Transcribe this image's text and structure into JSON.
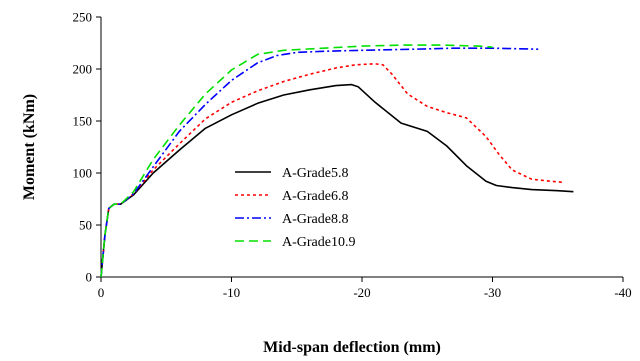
{
  "chart_data": {
    "type": "line",
    "title": "",
    "xlabel": "Mid-span deflection (mm)",
    "ylabel": "Moment (kNm)",
    "xlim": [
      0,
      -40
    ],
    "ylim": [
      0,
      250
    ],
    "xticks": [
      0,
      -10,
      -20,
      -30,
      -40
    ],
    "yticks": [
      0,
      50,
      100,
      150,
      200,
      250
    ],
    "grid": false,
    "legend_position": "center-left",
    "series": [
      {
        "name": "A-Grade5.8",
        "color": "#000000",
        "dash": "solid",
        "x": [
          0,
          -0.3,
          -0.6,
          -1.0,
          -1.5,
          -2.5,
          -4,
          -6,
          -8,
          -10,
          -12,
          -14,
          -16,
          -18,
          -19.2,
          -19.7,
          -21,
          -23,
          -25,
          -26.5,
          -28,
          -29.5,
          -30.3,
          -31.5,
          -33,
          -35,
          -36.2
        ],
        "y": [
          0,
          40,
          66,
          70,
          70,
          79,
          100,
          122,
          143,
          156,
          167,
          175,
          180,
          184,
          185,
          183,
          168,
          148,
          140,
          126,
          107,
          92,
          88,
          86,
          84,
          83,
          82
        ]
      },
      {
        "name": "A-Grade6.8",
        "color": "#ff0000",
        "dash": "dotted",
        "x": [
          0,
          -0.3,
          -0.6,
          -1.0,
          -1.5,
          -2.5,
          -4,
          -6,
          -8,
          -10,
          -12,
          -14,
          -16,
          -18,
          -19.5,
          -21,
          -21.6,
          -22.3,
          -23.5,
          -25,
          -26.5,
          -28,
          -29.5,
          -30.5,
          -31.5,
          -33,
          -34.5,
          -35.5
        ],
        "y": [
          0,
          40,
          66,
          70,
          70,
          80,
          103,
          128,
          152,
          168,
          179,
          188,
          195,
          201,
          204,
          205,
          204,
          195,
          176,
          164,
          158,
          153,
          135,
          118,
          103,
          94,
          92,
          91
        ]
      },
      {
        "name": "A-Grade8.8",
        "color": "#0000ff",
        "dash": "dashdot",
        "x": [
          0,
          -0.3,
          -0.6,
          -1.0,
          -1.5,
          -2.5,
          -4,
          -6,
          -8,
          -10,
          -12,
          -13.5,
          -15,
          -17,
          -20,
          -24,
          -27,
          -30,
          -33.5
        ],
        "y": [
          0,
          40,
          66,
          70,
          70,
          80,
          106,
          140,
          166,
          189,
          206,
          213,
          216,
          217,
          218,
          219,
          220,
          220,
          219
        ]
      },
      {
        "name": "A-Grade10.9",
        "color": "#00e000",
        "dash": "dashed",
        "x": [
          0,
          -0.3,
          -0.6,
          -1.0,
          -1.5,
          -2.5,
          -4,
          -6,
          -8,
          -10,
          -12,
          -14,
          -17,
          -20,
          -23,
          -26,
          -29,
          -30
        ],
        "y": [
          0,
          40,
          66,
          70,
          70,
          82,
          113,
          146,
          176,
          199,
          214,
          218,
          220,
          222,
          223,
          223,
          222,
          221
        ]
      }
    ]
  }
}
